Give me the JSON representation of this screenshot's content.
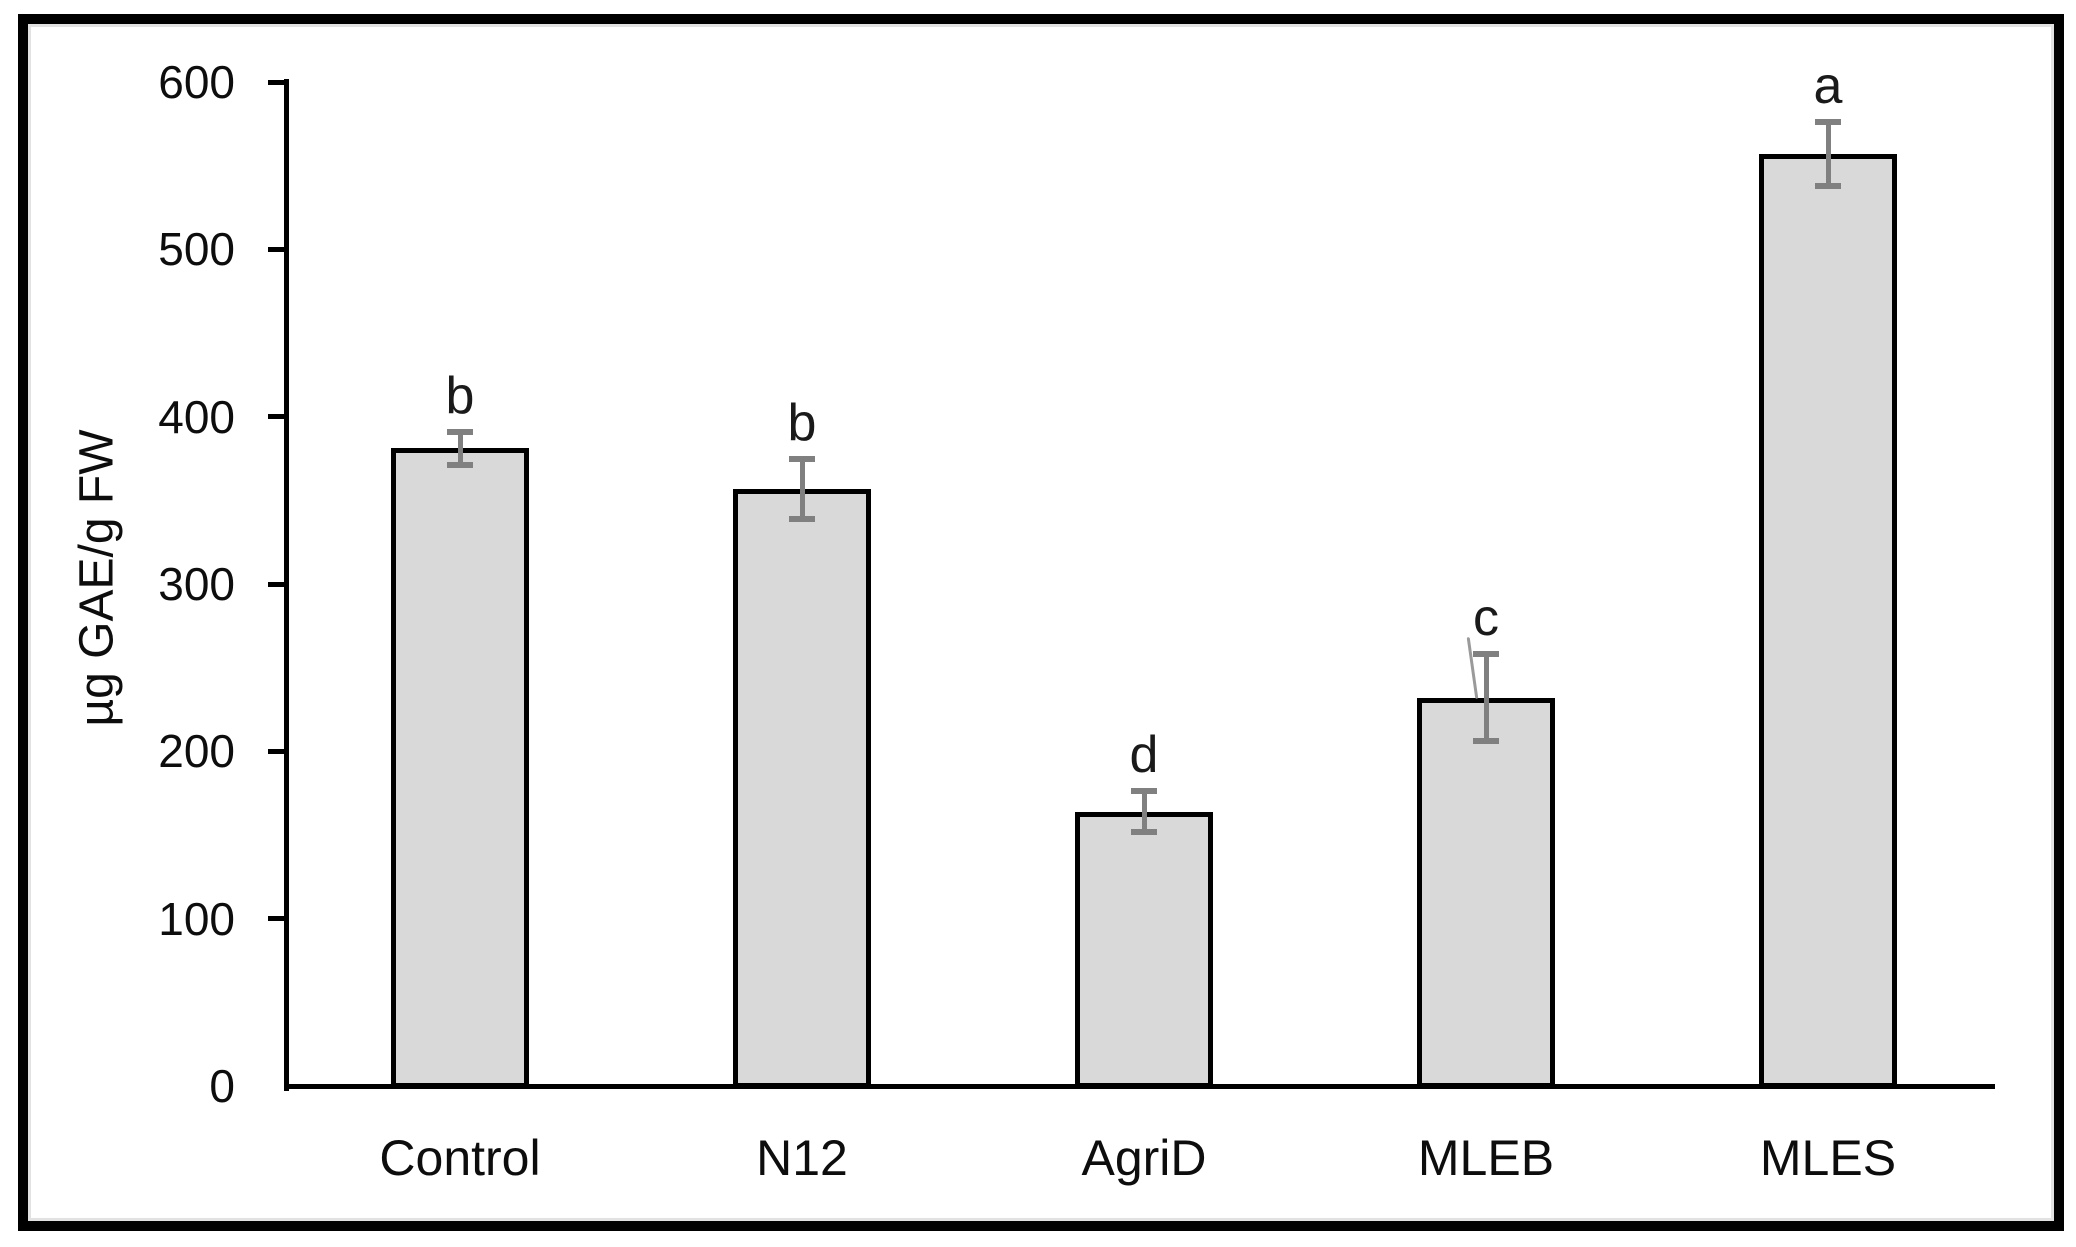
{
  "figure": {
    "kind": "statistical bar chart with error bars and significance letters"
  },
  "chart_data": {
    "type": "bar",
    "ylabel": "µg GAE/g FW",
    "categories": [
      "Control",
      "N12",
      "AgriD",
      "MLEB",
      "MLES"
    ],
    "values": [
      381,
      357,
      164,
      232,
      557
    ],
    "error_bars": [
      10,
      18,
      12,
      26,
      19
    ],
    "sig_letters": [
      "b",
      "b",
      "d",
      "c",
      "a"
    ],
    "ylim": [
      0,
      600
    ],
    "yticks": [
      0,
      100,
      200,
      300,
      400,
      500,
      600
    ],
    "grid": false,
    "legend": false,
    "colors": {
      "bar_fill": "#d9d9d9",
      "bar_border": "#000000",
      "error_bar": "#808080",
      "axis": "#000000",
      "text": "#0d0d0d",
      "frame": "#000000",
      "frame_inner_edge": "#e2e2e2"
    },
    "stray_mark": {
      "category": "MLEB",
      "color": "#9a9a9a"
    }
  }
}
